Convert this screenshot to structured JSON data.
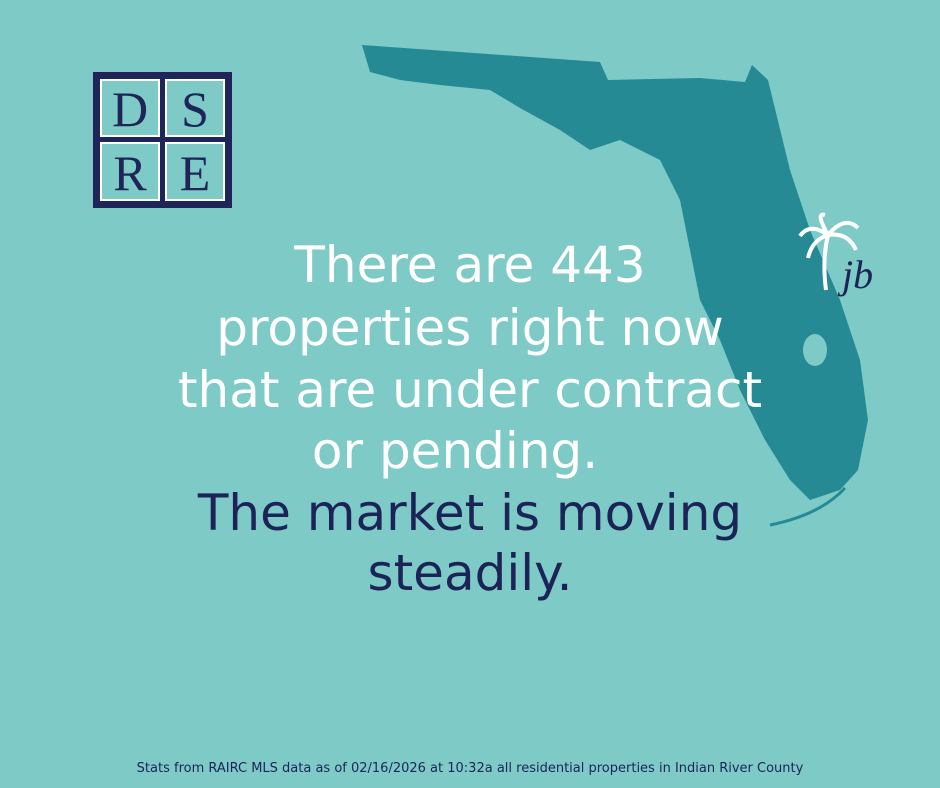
{
  "logo": {
    "letters": [
      "D",
      "S",
      "R",
      "E"
    ]
  },
  "headline": {
    "lines": [
      "There are 443",
      "properties right now",
      "that are under contract",
      "or pending."
    ]
  },
  "subline": {
    "lines": [
      "The market is moving",
      "steadily."
    ]
  },
  "badge": {
    "text": "jb"
  },
  "footer": {
    "text": "Stats from RAIRC MLS data as of 02/16/2026 at 10:32a all residential properties in Indian River County"
  }
}
